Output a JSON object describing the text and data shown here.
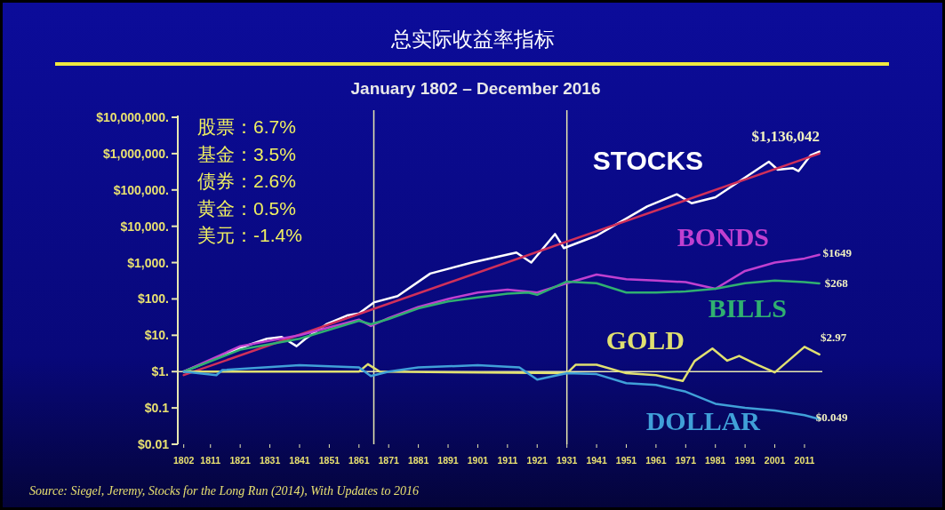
{
  "chart_data": {
    "type": "line",
    "title": "总实际收益率指标",
    "subtitle": "January 1802 – December 2016",
    "annotations": [
      "股票：6.7%",
      "基金：3.5%",
      "债券：2.6%",
      "黄金：0.5%",
      "美元：-1.4%",
      "Source: Siegel, Jeremy, Stocks for the Long Run (2014), With Updates to 2016"
    ],
    "log": "y",
    "xlim": [
      1800,
      2017
    ],
    "xticks": [
      1802,
      1811,
      1821,
      1831,
      1841,
      1851,
      1861,
      1871,
      1881,
      1891,
      1901,
      1911,
      1921,
      1931,
      1941,
      1951,
      1961,
      1971,
      1981,
      1991,
      2001,
      2011
    ],
    "ylim": [
      0.01,
      10000000
    ],
    "yticks": [
      {
        "value": 0.01,
        "label": "$0.01"
      },
      {
        "value": 0.1,
        "label": "$0.1"
      },
      {
        "value": 1,
        "label": "$1."
      },
      {
        "value": 10,
        "label": "$10."
      },
      {
        "value": 100,
        "label": "$100."
      },
      {
        "value": 1000,
        "label": "$1,000."
      },
      {
        "value": 10000,
        "label": "$10,000."
      },
      {
        "value": 100000,
        "label": "$100,000."
      },
      {
        "value": 1000000,
        "label": "$1,000,000."
      },
      {
        "value": 10000000,
        "label": "$10,000,000."
      }
    ],
    "grid": false,
    "ref_lines": [
      {
        "axis": "x",
        "value": 1866,
        "color": "#e8e8b0"
      },
      {
        "axis": "x",
        "value": 1931,
        "color": "#e8e8b0"
      },
      {
        "axis": "y",
        "value": 1,
        "color": "#e8e8b0"
      }
    ],
    "series": [
      {
        "name": "STOCKS",
        "color": "#ffffff",
        "x": [
          1802,
          1811,
          1821,
          1830,
          1835,
          1840,
          1843,
          1850,
          1857,
          1861,
          1866,
          1874,
          1885,
          1899,
          1914,
          1919,
          1927,
          1930,
          1941,
          1958,
          1968,
          1973,
          1981,
          1999,
          2002,
          2007,
          2009,
          2013,
          2016
        ],
        "values": [
          1,
          2,
          4.5,
          8,
          9,
          5,
          8,
          20,
          35,
          40,
          80,
          120,
          500,
          1000,
          1900,
          1000,
          6100,
          2500,
          5500,
          35000,
          76000,
          43000,
          63000,
          600000,
          360000,
          400000,
          330000,
          890000,
          1136042
        ],
        "value_labels": [
          null,
          null,
          null,
          null,
          null,
          null,
          null,
          null,
          null,
          null,
          null,
          null,
          null,
          null,
          null,
          null,
          null,
          null,
          null,
          null,
          null,
          null,
          null,
          null,
          null,
          null,
          null,
          null,
          "$1,136,042"
        ]
      },
      {
        "color": "#d0305a",
        "x": [
          1802,
          2016
        ],
        "values": [
          0.8,
          1000000
        ]
      },
      {
        "name": "BONDS",
        "color": "#c040d0",
        "x": [
          1802,
          1821,
          1841,
          1861,
          1865,
          1871,
          1881,
          1891,
          1901,
          1911,
          1921,
          1931,
          1941,
          1951,
          1961,
          1971,
          1981,
          1991,
          2001,
          2011,
          2016
        ],
        "values": [
          1,
          5,
          10,
          27,
          18,
          30,
          60,
          100,
          150,
          180,
          150,
          270,
          470,
          350,
          320,
          290,
          190,
          590,
          1000,
          1300,
          1649
        ],
        "value_labels": [
          null,
          null,
          null,
          null,
          null,
          null,
          null,
          null,
          null,
          null,
          null,
          null,
          null,
          null,
          null,
          null,
          null,
          null,
          null,
          null,
          "$1649"
        ]
      },
      {
        "name": "BILLS",
        "color": "#30b070",
        "x": [
          1802,
          1821,
          1841,
          1861,
          1865,
          1871,
          1881,
          1891,
          1901,
          1911,
          1918,
          1921,
          1931,
          1941,
          1951,
          1961,
          1971,
          1981,
          1991,
          2001,
          2011,
          2016
        ],
        "values": [
          1,
          4,
          8,
          25,
          20,
          28,
          55,
          85,
          110,
          140,
          150,
          130,
          300,
          270,
          150,
          150,
          160,
          190,
          270,
          320,
          290,
          268
        ],
        "value_labels": [
          null,
          null,
          null,
          null,
          null,
          null,
          null,
          null,
          null,
          null,
          null,
          null,
          null,
          null,
          null,
          null,
          null,
          null,
          null,
          null,
          null,
          "$268"
        ]
      },
      {
        "name": "GOLD",
        "color": "#e0e070",
        "x": [
          1802,
          1861,
          1864,
          1868,
          1931,
          1934,
          1941,
          1951,
          1961,
          1970,
          1974,
          1980,
          1985,
          1989,
          1995,
          2001,
          2011,
          2016
        ],
        "values": [
          1,
          1,
          1.6,
          1,
          0.9,
          1.55,
          1.55,
          0.9,
          0.8,
          0.55,
          1.95,
          4.3,
          2,
          2.7,
          1.55,
          0.95,
          4.8,
          2.97
        ],
        "value_labels": [
          null,
          null,
          null,
          null,
          null,
          null,
          null,
          null,
          null,
          null,
          null,
          null,
          null,
          null,
          null,
          null,
          null,
          "$2.97"
        ]
      },
      {
        "name": "DOLLAR",
        "color": "#40a0d8",
        "x": [
          1802,
          1813,
          1815,
          1841,
          1861,
          1865,
          1871,
          1881,
          1901,
          1915,
          1921,
          1931,
          1941,
          1951,
          1961,
          1971,
          1981,
          1991,
          2001,
          2011,
          2016
        ],
        "values": [
          1,
          0.8,
          1.1,
          1.5,
          1.3,
          0.75,
          1,
          1.3,
          1.5,
          1.3,
          0.6,
          0.9,
          0.85,
          0.48,
          0.43,
          0.28,
          0.13,
          0.1,
          0.085,
          0.063,
          0.049
        ],
        "value_labels": [
          null,
          null,
          null,
          null,
          null,
          null,
          null,
          null,
          null,
          null,
          null,
          null,
          null,
          null,
          null,
          null,
          null,
          null,
          null,
          null,
          "$0.049"
        ]
      }
    ]
  }
}
